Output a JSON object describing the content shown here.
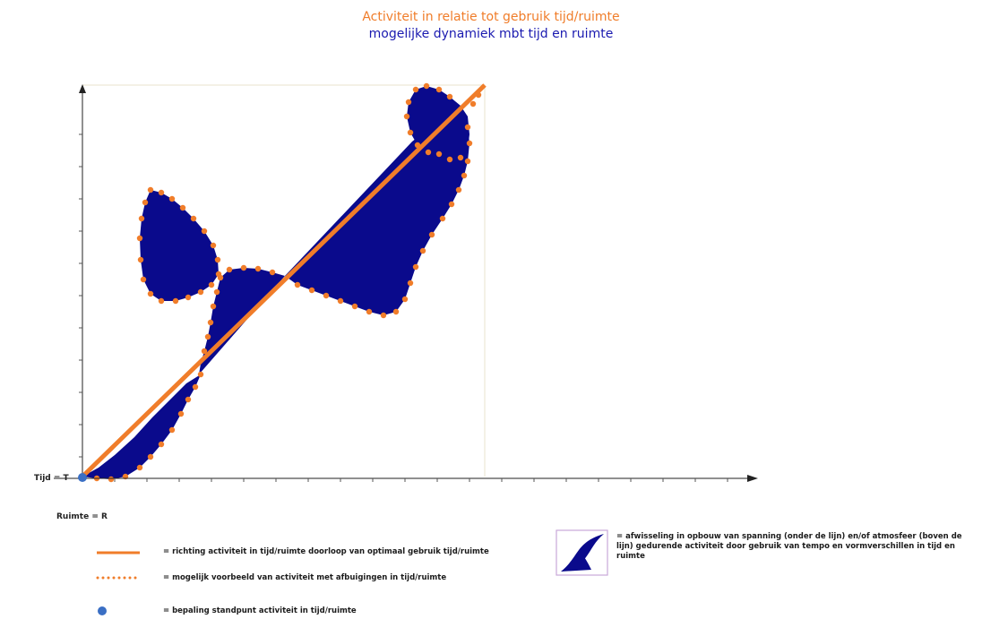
{
  "title": "Activiteit in relatie tot gebruik tijd/ruimte",
  "subtitle": "mogelijke dynamiek mbt tijd en ruimte",
  "axes": {
    "y_label": "Tijd = T",
    "x_label": "Ruimte = R"
  },
  "legend": {
    "line": "= richting activiteit in tijd/ruimte  doorloop van optimaal gebruik tijd/ruimte",
    "dotted": "= mogelijk voorbeeld van activiteit  met afbuigingen in tijd/ruimte",
    "dot": "= bepaling standpunt activiteit in tijd/ruimte",
    "wave": "= afwisseling in opbouw van spanning (onder de lijn) en/of atmosfeer (boven de lijn) gedurende activiteit door gebruik van tempo en vormverschillen in tijd en ruimte"
  },
  "colors": {
    "orange": "#f07d2a",
    "navy": "#0a0a8c",
    "blue_dot": "#3a6fc4"
  }
}
